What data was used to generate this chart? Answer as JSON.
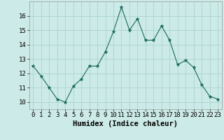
{
  "x": [
    0,
    1,
    2,
    3,
    4,
    5,
    6,
    7,
    8,
    9,
    10,
    11,
    12,
    13,
    14,
    15,
    16,
    17,
    18,
    19,
    20,
    21,
    22,
    23
  ],
  "y": [
    12.5,
    11.8,
    11.0,
    10.2,
    10.0,
    11.1,
    11.6,
    12.5,
    12.5,
    13.5,
    14.9,
    16.6,
    15.0,
    15.8,
    14.3,
    14.3,
    15.3,
    14.3,
    12.6,
    12.9,
    12.4,
    11.2,
    10.4,
    10.2
  ],
  "line_color": "#1a6b5e",
  "marker": "*",
  "marker_size": 3.5,
  "bg_color": "#cceae7",
  "grid_color": "#aad4cf",
  "xlabel": "Humidex (Indice chaleur)",
  "xlim": [
    -0.5,
    23.5
  ],
  "ylim": [
    9.5,
    17.0
  ],
  "yticks": [
    10,
    11,
    12,
    13,
    14,
    15,
    16
  ],
  "xticks": [
    0,
    1,
    2,
    3,
    4,
    5,
    6,
    7,
    8,
    9,
    10,
    11,
    12,
    13,
    14,
    15,
    16,
    17,
    18,
    19,
    20,
    21,
    22,
    23
  ],
  "spine_color": "#999999",
  "xlabel_fontsize": 7.5,
  "tick_fontsize": 6.5
}
